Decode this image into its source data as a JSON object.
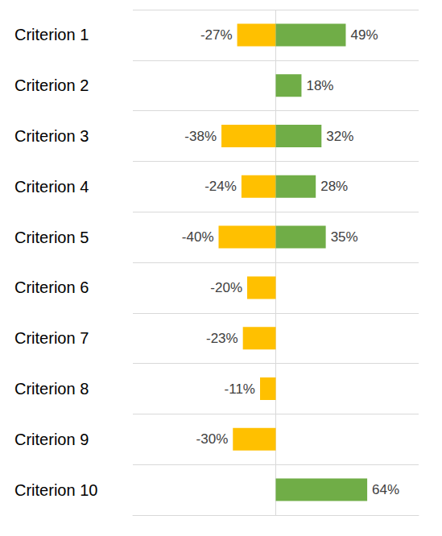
{
  "chart_data": {
    "type": "bar",
    "orientation": "horizontal",
    "categories": [
      "Criterion 1",
      "Criterion 2",
      "Criterion 3",
      "Criterion 4",
      "Criterion 5",
      "Criterion 6",
      "Criterion 7",
      "Criterion 8",
      "Criterion 9",
      "Criterion 10"
    ],
    "series": [
      {
        "color": "#FFC000",
        "values": [
          -27,
          null,
          -38,
          -24,
          -40,
          -20,
          -23,
          -11,
          -30,
          null
        ],
        "value_labels": [
          "-27%",
          null,
          "-38%",
          "-24%",
          "-40%",
          "-20%",
          "-23%",
          "-11%",
          "-30%",
          null
        ]
      },
      {
        "color": "#70AD47",
        "values": [
          49,
          18,
          32,
          28,
          35,
          null,
          null,
          null,
          null,
          64
        ],
        "value_labels": [
          "49%",
          "18%",
          "32%",
          "28%",
          "35%",
          null,
          null,
          null,
          null,
          "64%"
        ]
      }
    ],
    "xlim": [
      -100,
      100
    ],
    "xticks": [
      0
    ],
    "grid": true,
    "data_labels": true,
    "tick_labels": "y"
  }
}
